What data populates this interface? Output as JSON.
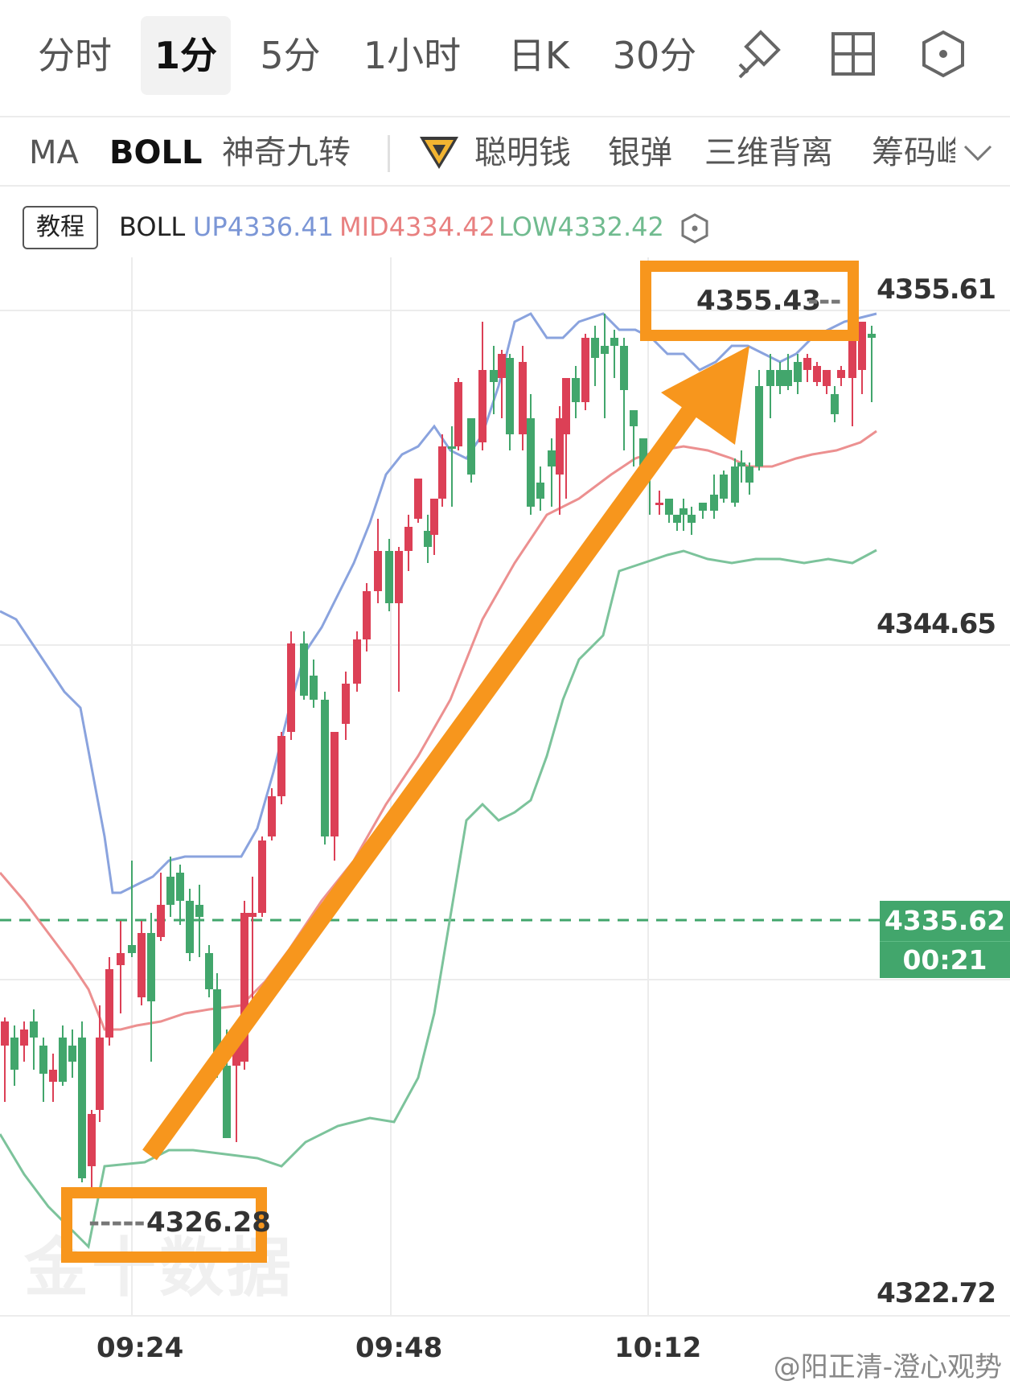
{
  "timeframes": [
    "分时",
    "1分",
    "5分",
    "1小时",
    "日K",
    "30分"
  ],
  "active_timeframe": "1分",
  "indicator_tabs": [
    "MA",
    "BOLL",
    "神奇九转",
    "聪明钱",
    "银弹",
    "三维背离",
    "筹码峰"
  ],
  "active_indicator": "BOLL",
  "boll": {
    "tutorial_label": "教程",
    "name": "BOLL",
    "up": "UP4336.41",
    "mid": "MID4334.42",
    "low": "LOW4332.42",
    "up_color": "#7b96d6",
    "mid_color": "#e88080",
    "low_color": "#70bb8f"
  },
  "y_axis": [
    "4355.61",
    "4344.65",
    "4322.72"
  ],
  "current_price": "4335.62",
  "countdown": "00:21",
  "x_axis": [
    "09:24",
    "09:48",
    "10:12"
  ],
  "annotations": {
    "high_label": "4355.43",
    "low_label": "4326.28",
    "color": "#f7961d"
  },
  "watermark": "金十数据",
  "credit": "@阳正清-澄心观势",
  "colors": {
    "up": "#dc4056",
    "down": "#42a66c"
  }
}
